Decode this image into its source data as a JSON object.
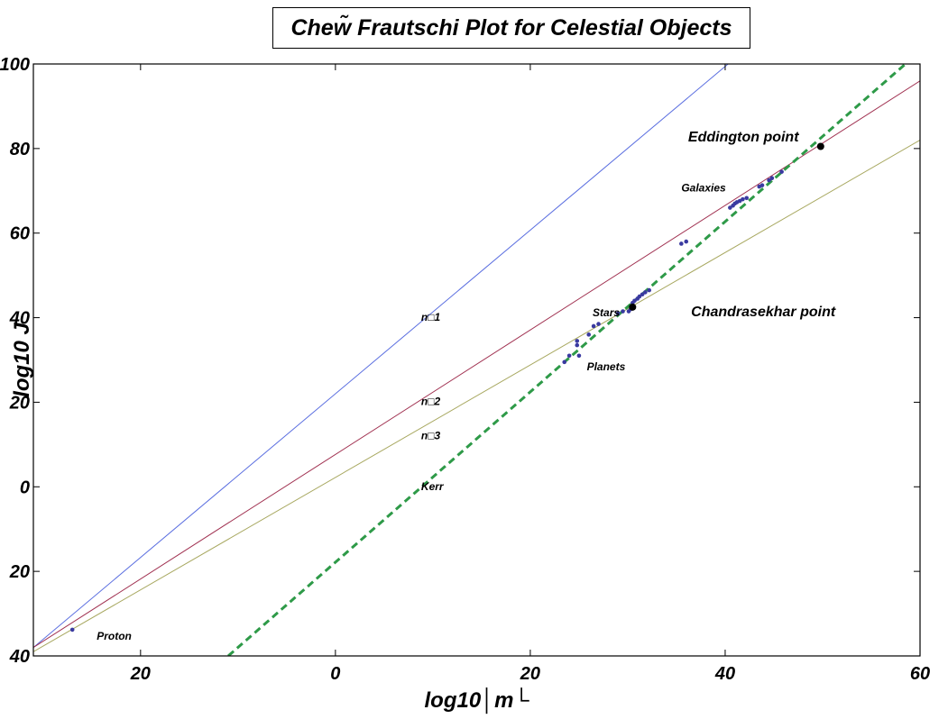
{
  "chart_data": {
    "type": "line",
    "title": "Chew̃  Frautschi Plot for Celestial Objects",
    "xlabel": "log10│m└",
    "ylabel": "log10  J",
    "xlim": [
      -31,
      60
    ],
    "ylim": [
      -40,
      100
    ],
    "x_ticks": [
      {
        "value": -20,
        "label": "20"
      },
      {
        "value": 0,
        "label": "0"
      },
      {
        "value": 20,
        "label": "20"
      },
      {
        "value": 40,
        "label": "40"
      },
      {
        "value": 60,
        "label": "60"
      }
    ],
    "y_ticks": [
      {
        "value": 100,
        "label": "100"
      },
      {
        "value": 80,
        "label": "80"
      },
      {
        "value": 60,
        "label": "60"
      },
      {
        "value": 40,
        "label": "40"
      },
      {
        "value": 20,
        "label": "20"
      },
      {
        "value": 0,
        "label": "0"
      },
      {
        "value": -20,
        "label": "20"
      },
      {
        "value": -40,
        "label": "40"
      }
    ],
    "lines": [
      {
        "name": "n□1",
        "color": "#5a6ee0",
        "dashed": false,
        "x": [
          -31,
          40.3
        ],
        "y": [
          -38,
          100
        ]
      },
      {
        "name": "n□2",
        "color": "#a03050",
        "dashed": false,
        "x": [
          -31,
          60
        ],
        "y": [
          -38,
          96
        ]
      },
      {
        "name": "n□3",
        "color": "#a8a860",
        "dashed": false,
        "x": [
          -31,
          60
        ],
        "y": [
          -39,
          82
        ]
      },
      {
        "name": "Kerr",
        "color": "#2e9a48",
        "dashed": true,
        "x": [
          -11,
          59
        ],
        "y": [
          -40,
          101
        ]
      }
    ],
    "points": {
      "color": "#3a3aa0",
      "x": [
        -27,
        23.5,
        24,
        24.8,
        24.8,
        25,
        26,
        26.5,
        27,
        29,
        29.5,
        30.1,
        30.3,
        30.5,
        30.7,
        31,
        31.2,
        31.5,
        31.8,
        32.2,
        35.5,
        36,
        40.5,
        40.8,
        41,
        41.2,
        41.5,
        41.8,
        42.2,
        43.5,
        43.8,
        44.5,
        44.8,
        45.8
      ],
      "y": [
        -33.8,
        29.5,
        31,
        33.5,
        34.5,
        31,
        36,
        38,
        38.5,
        41,
        41.5,
        41.5,
        42,
        43.5,
        44,
        44.5,
        45,
        45.5,
        46,
        46.5,
        57.5,
        58,
        66,
        66.5,
        67,
        67.3,
        67.6,
        68,
        68.3,
        71,
        71.3,
        72.5,
        73,
        74.5
      ]
    },
    "special_points": [
      {
        "name": "Chandrasekhar point",
        "x": 30.5,
        "y": 42.5
      },
      {
        "name": "Eddington point",
        "x": 49.8,
        "y": 80.5
      }
    ],
    "annotations": [
      {
        "text": "n□1",
        "x": 8.8,
        "y": 39.3
      },
      {
        "text": "n□2",
        "x": 8.8,
        "y": 19.3
      },
      {
        "text": "n□3",
        "x": 8.8,
        "y": 11.3
      },
      {
        "text": "Kerr",
        "x": 8.8,
        "y": -0.8
      },
      {
        "text": "Stars",
        "x": 26.4,
        "y": 40.3
      },
      {
        "text": "Planets",
        "x": 25.8,
        "y": 27.5
      },
      {
        "text": "Galaxies",
        "x": 35.5,
        "y": 69.8
      },
      {
        "text": "Proton",
        "x": -24.5,
        "y": -36.2
      }
    ],
    "big_annotations": [
      {
        "text": "Eddington point",
        "x": 36.2,
        "y": 81.7
      },
      {
        "text": "Chandrasekhar point",
        "x": 36.5,
        "y": 40.3
      }
    ],
    "grid": false,
    "legend": "none"
  }
}
